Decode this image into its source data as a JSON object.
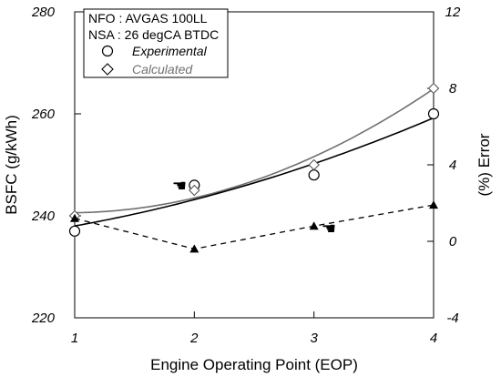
{
  "chart_data": {
    "type": "scatter",
    "title": "",
    "xlabel": "Engine Operating Point (EOP)",
    "ylabel": "BSFC (g/kWh)",
    "y2label": "(%) Error",
    "x_ticks": [
      1,
      2,
      3,
      4
    ],
    "xlim": [
      1,
      4
    ],
    "ylim": [
      220,
      280
    ],
    "y_ticks": [
      220,
      240,
      260,
      280
    ],
    "y2lim": [
      -4,
      12
    ],
    "y2_ticks": [
      -4,
      0,
      4,
      8,
      12
    ],
    "grid": false,
    "legend_position": "top-left",
    "annotations": [
      "NFO : AVGAS 100LL",
      "NSA : 26 degCA BTDC"
    ],
    "series": [
      {
        "name": "Experimental",
        "marker": "circle",
        "axis": "left",
        "x": [
          1,
          2,
          3,
          4
        ],
        "y": [
          237,
          246,
          248,
          260
        ],
        "trend_y": [
          238,
          243.2,
          250.2,
          259.2
        ]
      },
      {
        "name": "Calculated",
        "marker": "diamond",
        "axis": "left",
        "x": [
          1,
          2,
          3,
          4
        ],
        "y": [
          240,
          245,
          250,
          265
        ],
        "trend_y": [
          240.5,
          243.8,
          251.3,
          265
        ]
      },
      {
        "name": "",
        "marker": "triangle",
        "axis": "right",
        "line": "dashed",
        "x": [
          1,
          2,
          3,
          4
        ],
        "y": [
          1.2,
          -0.4,
          0.8,
          1.9
        ]
      }
    ],
    "colors": {
      "experimental_trend": "#000000",
      "calculated_trend": "#707070",
      "error_line": "#000000",
      "axes": "#000000"
    }
  }
}
